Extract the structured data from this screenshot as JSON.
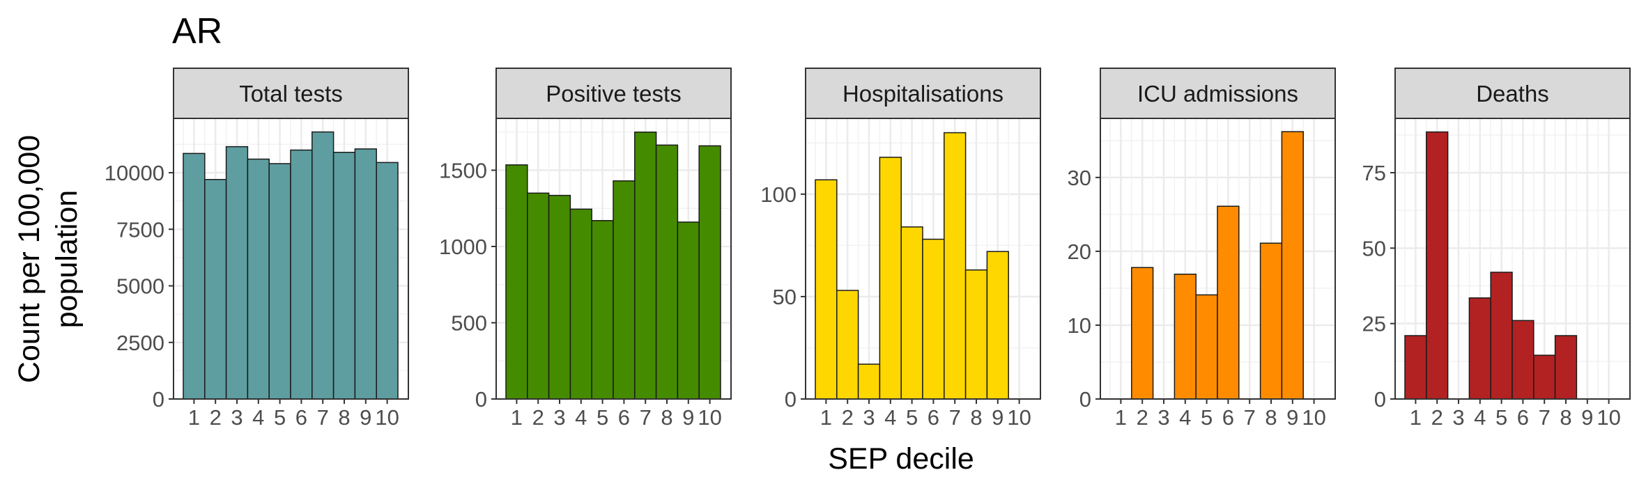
{
  "figure": {
    "title": "AR",
    "xlabel": "SEP decile",
    "ylabel_line1": "Count per 100,000",
    "ylabel_line2": "population"
  },
  "chart_data": [
    {
      "type": "bar",
      "title": "Total tests",
      "color": "#5F9EA0",
      "categories": [
        "1",
        "2",
        "3",
        "4",
        "5",
        "6",
        "7",
        "8",
        "9",
        "10"
      ],
      "values": [
        10850,
        9700,
        11150,
        10600,
        10400,
        11000,
        11800,
        10900,
        11050,
        10450
      ],
      "ylim": [
        0,
        12400
      ],
      "yticks": [
        0,
        2500,
        5000,
        7500,
        10000
      ],
      "ytick_labels": [
        "0",
        "2500",
        "5000",
        "7500",
        "10000"
      ],
      "grid": true
    },
    {
      "type": "bar",
      "title": "Positive tests",
      "color": "#458B00",
      "categories": [
        "1",
        "2",
        "3",
        "4",
        "5",
        "6",
        "7",
        "8",
        "9",
        "10"
      ],
      "values": [
        1535,
        1350,
        1335,
        1245,
        1170,
        1430,
        1750,
        1665,
        1160,
        1660
      ],
      "ylim": [
        0,
        1840
      ],
      "yticks": [
        0,
        500,
        1000,
        1500
      ],
      "ytick_labels": [
        "0",
        "500",
        "1000",
        "1500"
      ],
      "grid": true
    },
    {
      "type": "bar",
      "title": "Hospitalisations",
      "color": "#FFD700",
      "categories": [
        "1",
        "2",
        "3",
        "4",
        "5",
        "6",
        "7",
        "8",
        "9",
        "10"
      ],
      "values": [
        107,
        53,
        17,
        118,
        84,
        78,
        130,
        63,
        72,
        0
      ],
      "ylim": [
        0,
        137
      ],
      "yticks": [
        0,
        50,
        100
      ],
      "ytick_labels": [
        "0",
        "50",
        "100"
      ],
      "grid": true
    },
    {
      "type": "bar",
      "title": "ICU admissions",
      "color": "#FF8C00",
      "categories": [
        "1",
        "2",
        "3",
        "4",
        "5",
        "6",
        "7",
        "8",
        "9",
        "10"
      ],
      "values": [
        0,
        17.8,
        0,
        16.9,
        14.1,
        26.1,
        0,
        21.1,
        36.2,
        0
      ],
      "ylim": [
        0,
        38
      ],
      "yticks": [
        0,
        10,
        20,
        30
      ],
      "ytick_labels": [
        "0",
        "10",
        "20",
        "30"
      ],
      "grid": true
    },
    {
      "type": "bar",
      "title": "Deaths",
      "color": "#B22222",
      "categories": [
        "1",
        "2",
        "3",
        "4",
        "5",
        "6",
        "7",
        "8",
        "9",
        "10"
      ],
      "values": [
        21,
        88.5,
        0,
        33.5,
        42,
        26,
        14.5,
        21,
        0,
        0
      ],
      "ylim": [
        0,
        93
      ],
      "yticks": [
        0,
        25,
        50,
        75
      ],
      "ytick_labels": [
        "0",
        "25",
        "50",
        "75"
      ],
      "grid": true
    }
  ]
}
